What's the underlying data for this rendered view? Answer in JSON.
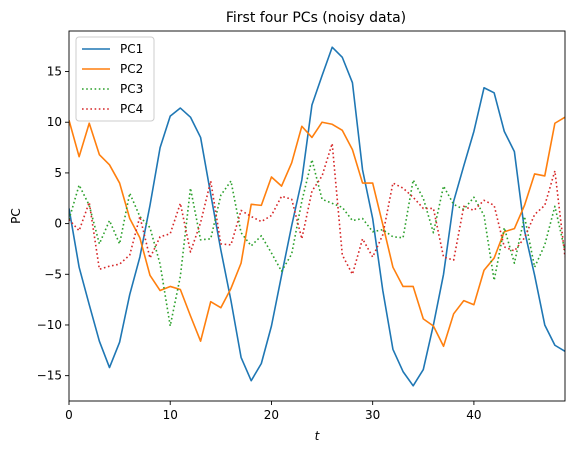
{
  "chart_data": {
    "type": "line",
    "title": "First four PCs (noisy data)",
    "xlabel": "t",
    "ylabel": "PC",
    "xlim": [
      0,
      49
    ],
    "ylim": [
      -17.5,
      19
    ],
    "xticks": [
      0,
      10,
      20,
      30,
      40
    ],
    "yticks": [
      -15,
      -10,
      -5,
      0,
      5,
      10,
      15
    ],
    "legend_position": "top-left",
    "grid": false,
    "x": [
      0,
      1,
      2,
      3,
      4,
      5,
      6,
      7,
      8,
      9,
      10,
      11,
      12,
      13,
      14,
      15,
      16,
      17,
      18,
      19,
      20,
      21,
      22,
      23,
      24,
      25,
      26,
      27,
      28,
      29,
      30,
      31,
      32,
      33,
      34,
      35,
      36,
      37,
      38,
      39,
      40,
      41,
      42,
      43,
      44,
      45,
      46,
      47,
      48,
      49
    ],
    "series": [
      {
        "name": "PC1",
        "color": "#1f77b4",
        "style": "solid",
        "values": [
          1.5,
          -4.3,
          -8.0,
          -11.6,
          -14.2,
          -11.7,
          -7.0,
          -3.3,
          1.8,
          7.5,
          10.6,
          11.4,
          10.5,
          8.5,
          2.9,
          -2.6,
          -7.6,
          -13.2,
          -15.5,
          -13.8,
          -10.1,
          -5.1,
          -0.2,
          4.3,
          11.7,
          14.6,
          17.4,
          16.4,
          13.9,
          5.3,
          0.5,
          -6.6,
          -12.4,
          -14.6,
          -16.0,
          -14.4,
          -10.0,
          -5.0,
          2.2,
          5.7,
          9.1,
          13.4,
          12.9,
          9.1,
          7.1,
          -0.7,
          -5.1,
          -10.0,
          -12.0,
          -12.6
        ]
      },
      {
        "name": "PC2",
        "color": "#ff7f0e",
        "style": "solid",
        "values": [
          10.2,
          6.6,
          9.9,
          6.8,
          5.8,
          4.0,
          0.5,
          -1.4,
          -5.1,
          -6.6,
          -6.2,
          -6.5,
          -9.1,
          -11.6,
          -7.7,
          -8.3,
          -6.4,
          -3.9,
          1.9,
          1.8,
          4.6,
          3.7,
          6.0,
          9.6,
          8.5,
          10.0,
          9.8,
          9.2,
          7.3,
          4.0,
          4.0,
          -0.1,
          -4.3,
          -6.2,
          -6.2,
          -9.4,
          -10.1,
          -12.1,
          -8.9,
          -7.6,
          -8.0,
          -4.6,
          -3.4,
          -0.8,
          -0.5,
          1.8,
          4.9,
          4.7,
          9.9,
          10.5
        ]
      },
      {
        "name": "PC3",
        "color": "#2ca02c",
        "style": "dotted",
        "values": [
          0.4,
          3.8,
          1.8,
          -2.0,
          0.3,
          -2.0,
          3.0,
          0.7,
          -0.4,
          -4.0,
          -10.1,
          -5.2,
          3.5,
          -1.6,
          -1.5,
          2.8,
          4.2,
          -0.9,
          -2.2,
          -1.2,
          -2.9,
          -4.7,
          -3.0,
          2.2,
          6.3,
          2.4,
          2.0,
          1.6,
          0.3,
          0.5,
          -0.8,
          -0.6,
          -1.3,
          -1.4,
          4.3,
          2.5,
          -0.9,
          3.7,
          1.9,
          1.4,
          2.6,
          0.8,
          -5.6,
          -0.4,
          -3.9,
          0.7,
          -4.3,
          -2.1,
          1.7,
          -2.7
        ]
      },
      {
        "name": "PC4",
        "color": "#d62728",
        "style": "dotted",
        "values": [
          0.4,
          -0.7,
          2.1,
          -4.5,
          -4.2,
          -4.0,
          -3.1,
          0.7,
          -3.4,
          -1.3,
          -1.0,
          2.0,
          -2.8,
          0.1,
          4.2,
          -2.0,
          -2.1,
          1.3,
          0.7,
          0.2,
          0.8,
          2.7,
          2.4,
          -1.5,
          3.2,
          4.7,
          7.9,
          -3.1,
          -5.0,
          -1.5,
          -3.3,
          -1.1,
          4.0,
          3.5,
          2.6,
          1.5,
          1.5,
          -3.3,
          -3.6,
          1.7,
          1.3,
          2.3,
          1.8,
          -2.3,
          -2.7,
          -1.4,
          0.9,
          1.8,
          5.2,
          -3.3
        ]
      }
    ]
  }
}
